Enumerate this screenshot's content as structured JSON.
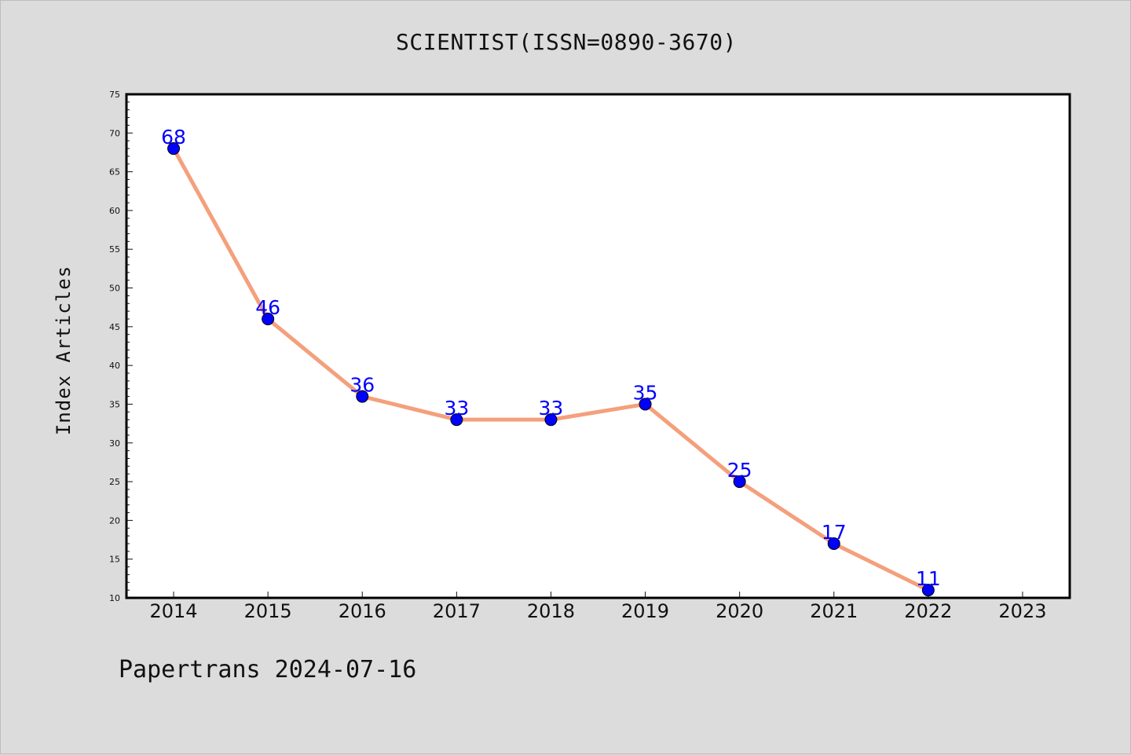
{
  "chart_data": {
    "type": "line",
    "title": "SCIENTIST(ISSN=0890-3670)",
    "xlabel": "",
    "ylabel": "Index Articles",
    "x": [
      2014,
      2015,
      2016,
      2017,
      2018,
      2019,
      2020,
      2021,
      2022
    ],
    "values": [
      68,
      46,
      36,
      33,
      33,
      35,
      25,
      17,
      11
    ],
    "x_ticks": [
      "2014",
      "2015",
      "2016",
      "2017",
      "2018",
      "2019",
      "2020",
      "2021",
      "2022",
      "2023"
    ],
    "y_ticks": [
      10,
      15,
      20,
      25,
      30,
      35,
      40,
      45,
      50,
      55,
      60,
      65,
      70,
      75
    ],
    "xlim": [
      2013.5,
      2023.5
    ],
    "ylim": [
      10,
      75
    ],
    "line_color": "#f4a07c",
    "marker_color": "#0000ff",
    "label_color": "#0000ff",
    "grid": false,
    "legend": "none"
  },
  "footer": "Papertrans 2024-07-16"
}
